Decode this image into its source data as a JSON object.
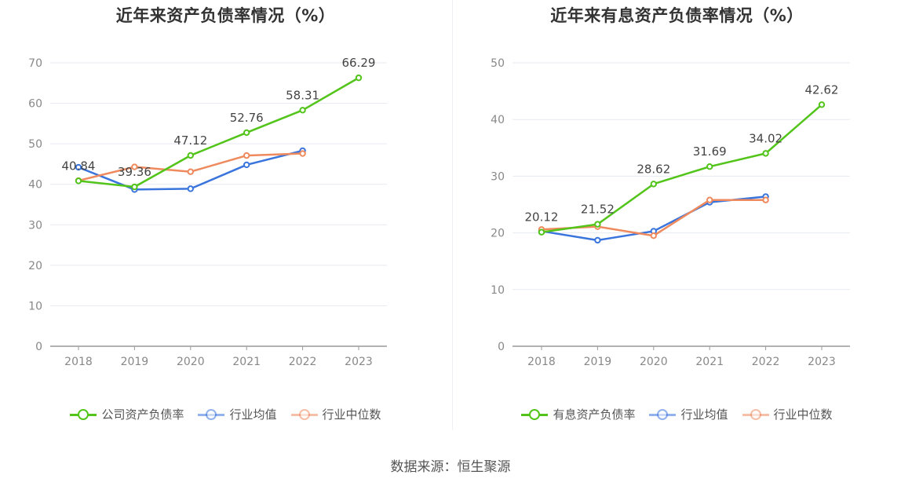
{
  "chart_data": [
    {
      "type": "line",
      "title": "近年来资产负债率情况（%）",
      "categories": [
        "2018",
        "2019",
        "2020",
        "2021",
        "2022",
        "2023"
      ],
      "ylim": [
        0,
        70
      ],
      "yticks": [
        "0",
        "10",
        "20",
        "30",
        "40",
        "50",
        "60",
        "70"
      ],
      "grid": true,
      "legend_position": "bottom",
      "series": [
        {
          "name": "公司资产负债率",
          "color": "#52c41a",
          "values": [
            40.84,
            39.36,
            47.12,
            52.76,
            58.31,
            66.29
          ],
          "labels": [
            "40.84",
            "39.36",
            "47.12",
            "52.76",
            "58.31",
            "66.29"
          ]
        },
        {
          "name": "行业均值",
          "color": "#3a74dd",
          "values": [
            44.2,
            38.7,
            38.9,
            44.8,
            48.3,
            null
          ]
        },
        {
          "name": "行业中位数",
          "color": "#ee8a5e",
          "values": [
            40.9,
            44.3,
            43.1,
            47.1,
            47.6,
            null
          ]
        }
      ]
    },
    {
      "type": "line",
      "title": "近年来有息资产负债率情况（%）",
      "categories": [
        "2018",
        "2019",
        "2020",
        "2021",
        "2022",
        "2023"
      ],
      "ylim": [
        0,
        50
      ],
      "yticks": [
        "0",
        "10",
        "20",
        "30",
        "40",
        "50"
      ],
      "grid": true,
      "legend_position": "bottom",
      "series": [
        {
          "name": "有息资产负债率",
          "color": "#52c41a",
          "values": [
            20.12,
            21.52,
            28.62,
            31.69,
            34.02,
            42.62
          ],
          "labels": [
            "20.12",
            "21.52",
            "28.62",
            "31.69",
            "34.02",
            "42.62"
          ]
        },
        {
          "name": "行业均值",
          "color": "#3a74dd",
          "values": [
            20.3,
            18.7,
            20.3,
            25.4,
            26.4,
            null
          ]
        },
        {
          "name": "行业中位数",
          "color": "#ee8a5e",
          "values": [
            20.6,
            21.1,
            19.5,
            25.8,
            25.8,
            null
          ]
        }
      ]
    }
  ],
  "source_text": "数据来源：恒生聚源"
}
